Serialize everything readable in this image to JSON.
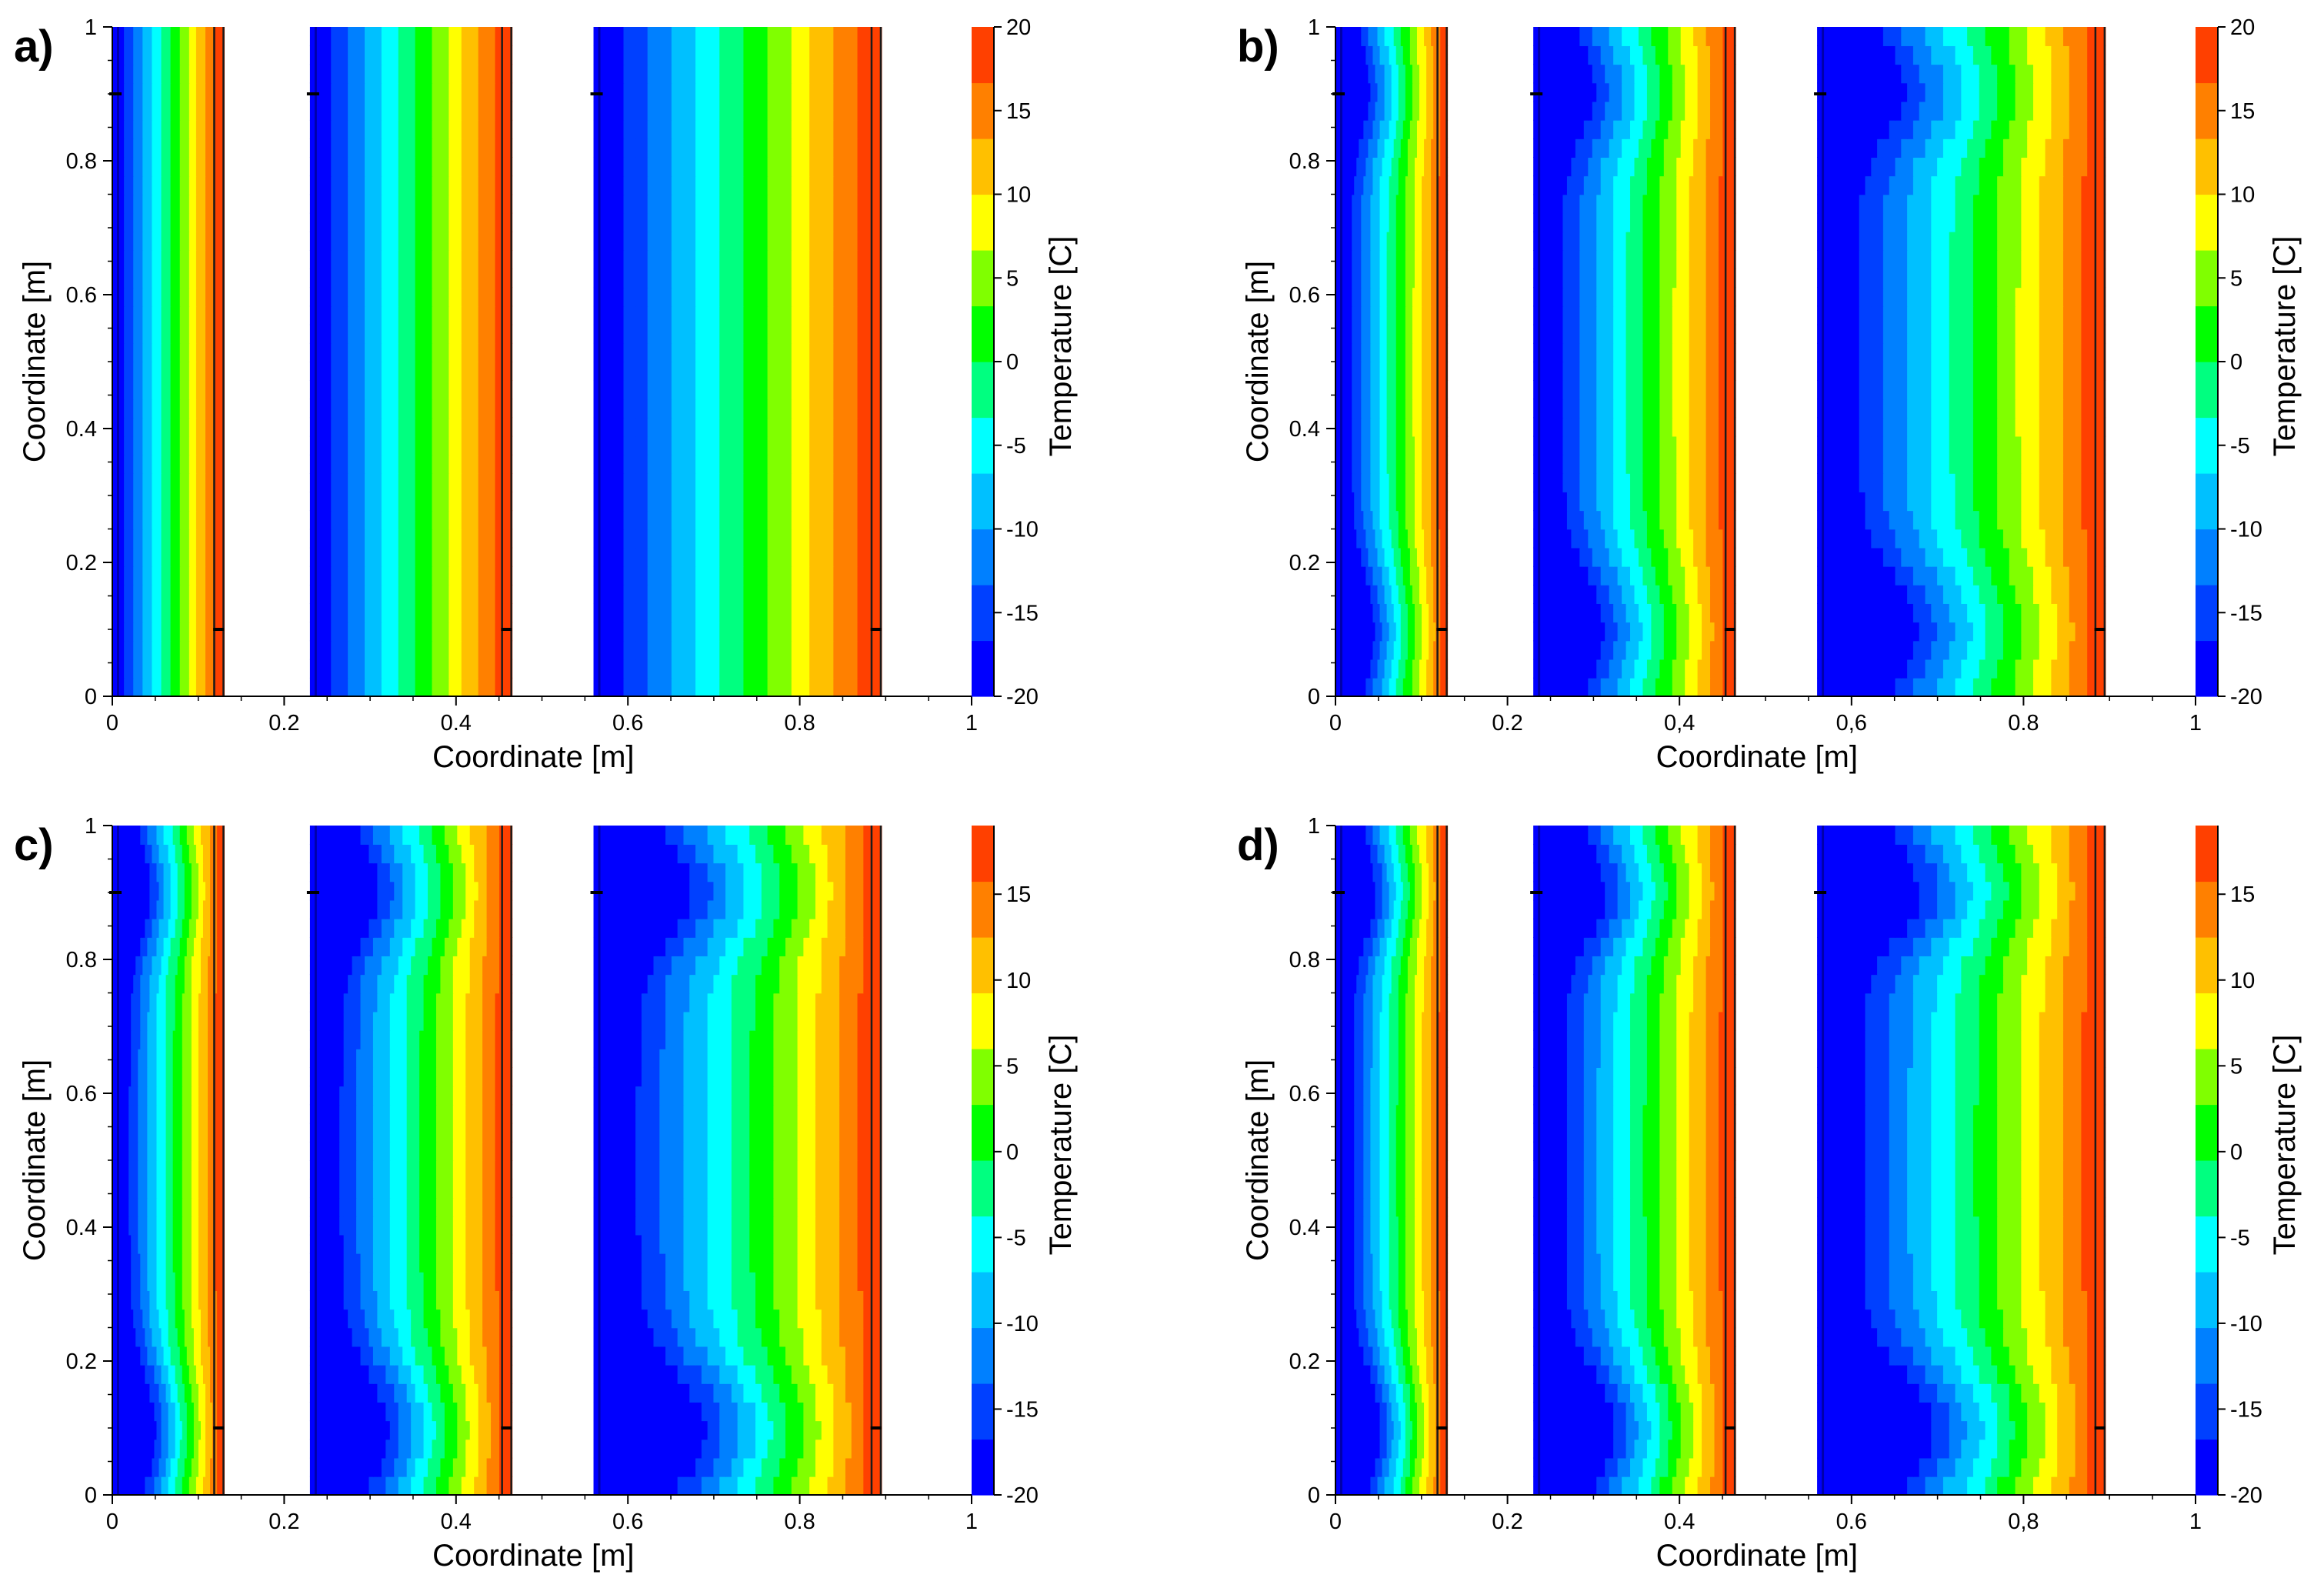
{
  "colors": {
    "colormap": [
      "#0000ff",
      "#0040ff",
      "#0080ff",
      "#00c0ff",
      "#00ffff",
      "#00ff80",
      "#00ff00",
      "#80ff00",
      "#ffff00",
      "#ffc000",
      "#ff8000",
      "#ff4000"
    ],
    "axis": "#000000",
    "dark_line": "#1a1a1a"
  },
  "chart_data": [
    {
      "id": "a",
      "panel_label": "a)",
      "type": "heatmap",
      "title": "",
      "xlabel": "Coordinate [m]",
      "ylabel": "Coordinate [m]",
      "colorbar_label": "Temperature [C]",
      "xlim": [
        0,
        1
      ],
      "ylim": [
        0,
        1
      ],
      "x_ticks": [
        "0",
        "0.2",
        "0.4",
        "0.6",
        "0.8",
        "1"
      ],
      "y_ticks": [
        "0",
        "0.2",
        "0.4",
        "0.6",
        "0.8",
        "1"
      ],
      "colorbar_range": [
        -20,
        20
      ],
      "colorbar_ticks": [
        "-20",
        "-15",
        "-10",
        "-5",
        "0",
        "5",
        "10",
        "15",
        "20"
      ],
      "walls": [
        {
          "x_start": 0.0,
          "x_end": 0.13,
          "temp_cold": -20,
          "temp_hot": 20,
          "bump": 0
        },
        {
          "x_start": 0.23,
          "x_end": 0.465,
          "temp_cold": -20,
          "temp_hot": 20,
          "bump": 0
        },
        {
          "x_start": 0.56,
          "x_end": 0.895,
          "temp_cold": -20,
          "temp_hot": 20,
          "bump": 0
        }
      ],
      "white_gaps": [
        [
          0.13,
          0.23
        ],
        [
          0.465,
          0.56
        ],
        [
          0.895,
          1.0
        ]
      ]
    },
    {
      "id": "b",
      "panel_label": "b)",
      "type": "heatmap",
      "title": "",
      "xlabel": "Coordinate [m]",
      "ylabel": "Coordinate [m]",
      "colorbar_label": "Temperature [C]",
      "xlim": [
        0,
        1
      ],
      "ylim": [
        0,
        1
      ],
      "x_ticks": [
        "0",
        "0.2",
        "0,4",
        "0,6",
        "0.8",
        "1"
      ],
      "y_ticks": [
        "0",
        "0.2",
        "0.4",
        "0.6",
        "0.8",
        "1"
      ],
      "colorbar_range": [
        -20,
        20
      ],
      "colorbar_ticks": [
        "-20",
        "-15",
        "-10",
        "-5",
        "0",
        "5",
        "10",
        "15",
        "20"
      ],
      "walls": [
        {
          "x_start": 0.0,
          "x_end": 0.13,
          "temp_cold": -20,
          "temp_hot": 20,
          "bump": 0.45
        },
        {
          "x_start": 0.23,
          "x_end": 0.465,
          "temp_cold": -20,
          "temp_hot": 20,
          "bump": 0.45
        },
        {
          "x_start": 0.56,
          "x_end": 0.895,
          "temp_cold": -20,
          "temp_hot": 20,
          "bump": 0.45
        }
      ],
      "white_gaps": [
        [
          0.13,
          0.23
        ],
        [
          0.465,
          0.56
        ],
        [
          0.895,
          1.0
        ]
      ]
    },
    {
      "id": "c",
      "panel_label": "c)",
      "type": "heatmap",
      "title": "",
      "xlabel": "Coordinate [m]",
      "ylabel": "Coordinate [m]",
      "colorbar_label": "Temperature [C]",
      "xlim": [
        0,
        1
      ],
      "ylim": [
        0,
        1
      ],
      "x_ticks": [
        "0",
        "0.2",
        "0.4",
        "0.6",
        "0.8",
        "1"
      ],
      "y_ticks": [
        "0",
        "0.2",
        "0.4",
        "0.6",
        "0.8",
        "1"
      ],
      "colorbar_range": [
        -20,
        19
      ],
      "colorbar_ticks": [
        "-20",
        "-15",
        "-10",
        "-5",
        "0",
        "5",
        "10",
        "15"
      ],
      "walls": [
        {
          "x_start": 0.0,
          "x_end": 0.13,
          "temp_cold": -20,
          "temp_hot": 19,
          "bump": 0.55
        },
        {
          "x_start": 0.23,
          "x_end": 0.465,
          "temp_cold": -20,
          "temp_hot": 19,
          "bump": 0.55
        },
        {
          "x_start": 0.56,
          "x_end": 0.895,
          "temp_cold": -20,
          "temp_hot": 19,
          "bump": 0.55
        }
      ],
      "white_gaps": [
        [
          0.13,
          0.23
        ],
        [
          0.465,
          0.56
        ],
        [
          0.895,
          1.0
        ]
      ]
    },
    {
      "id": "d",
      "panel_label": "d)",
      "type": "heatmap",
      "title": "",
      "xlabel": "Coordinate [m]",
      "ylabel": "Coordinate [m]",
      "colorbar_label": "Temperature [C]",
      "xlim": [
        0,
        1
      ],
      "ylim": [
        0,
        1
      ],
      "x_ticks": [
        "0",
        "0.2",
        "0.4",
        "0.6",
        "0,8",
        "1"
      ],
      "y_ticks": [
        "0",
        "0.2",
        "0.4",
        "0.6",
        "0.8",
        "1"
      ],
      "colorbar_range": [
        -20,
        19
      ],
      "colorbar_ticks": [
        "-20",
        "-15",
        "-10",
        "-5",
        "0",
        "5",
        "10",
        "15"
      ],
      "walls": [
        {
          "x_start": 0.0,
          "x_end": 0.13,
          "temp_cold": -20,
          "temp_hot": 19,
          "bump": 0.6
        },
        {
          "x_start": 0.23,
          "x_end": 0.465,
          "temp_cold": -20,
          "temp_hot": 19,
          "bump": 0.6
        },
        {
          "x_start": 0.56,
          "x_end": 0.895,
          "temp_cold": -20,
          "temp_hot": 19,
          "bump": 0.6
        }
      ],
      "white_gaps": [
        [
          0.13,
          0.23
        ],
        [
          0.465,
          0.56
        ],
        [
          0.895,
          1.0
        ]
      ]
    }
  ]
}
